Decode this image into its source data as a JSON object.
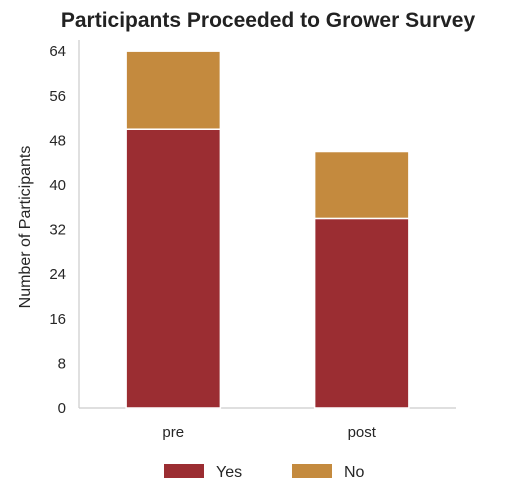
{
  "chart_data": {
    "type": "bar",
    "stacked": true,
    "title": "Participants Proceeded to Grower Survey",
    "xlabel": "",
    "ylabel": "Number of Participants",
    "categories": [
      "pre",
      "post"
    ],
    "series": [
      {
        "name": "Yes",
        "values": [
          50,
          34
        ],
        "color": "#9b2d32"
      },
      {
        "name": "No",
        "values": [
          14,
          12
        ],
        "color": "#c48a3e"
      }
    ],
    "ylim": [
      0,
      66
    ],
    "yticks": [
      0,
      8,
      16,
      24,
      32,
      40,
      48,
      56,
      64
    ],
    "grid": false,
    "legend_position": "bottom"
  }
}
